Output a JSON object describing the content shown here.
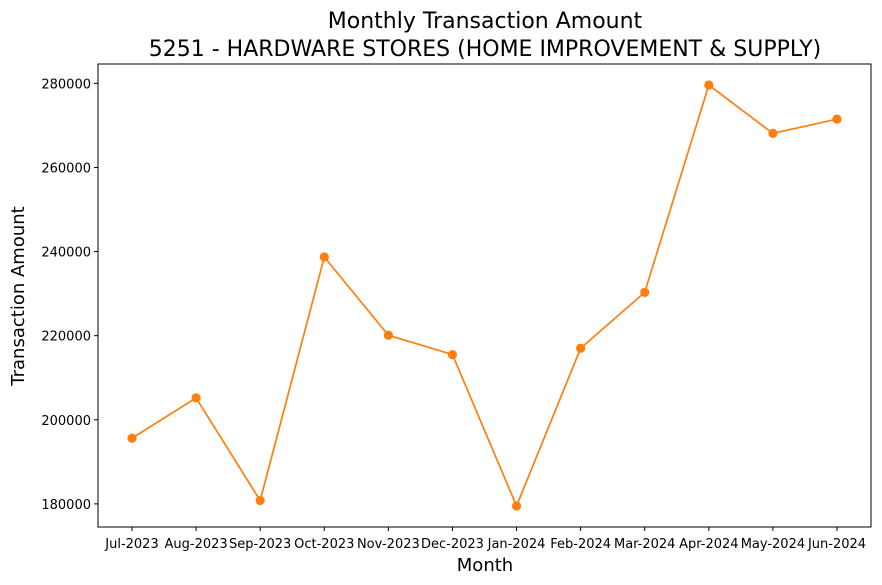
{
  "chart_data": {
    "type": "line",
    "title": "Monthly Transaction Amount",
    "subtitle": "5251 - HARDWARE STORES (HOME IMPROVEMENT & SUPPLY)",
    "xlabel": "Month",
    "ylabel": "Transaction Amount",
    "categories": [
      "Jul-2023",
      "Aug-2023",
      "Sep-2023",
      "Oct-2023",
      "Nov-2023",
      "Dec-2023",
      "Jan-2024",
      "Feb-2024",
      "Mar-2024",
      "Apr-2024",
      "May-2024",
      "Jun-2024"
    ],
    "series": [
      {
        "values": [
          195600,
          205200,
          180800,
          238700,
          220100,
          215500,
          179500,
          217000,
          230300,
          279600,
          268100,
          271500
        ],
        "color": "#ff7f0e",
        "marker": "circle"
      }
    ],
    "yticks": [
      180000,
      200000,
      220000,
      240000,
      260000,
      280000
    ],
    "ylim": [
      174500,
      284600
    ],
    "grid": false,
    "legend": "none"
  }
}
